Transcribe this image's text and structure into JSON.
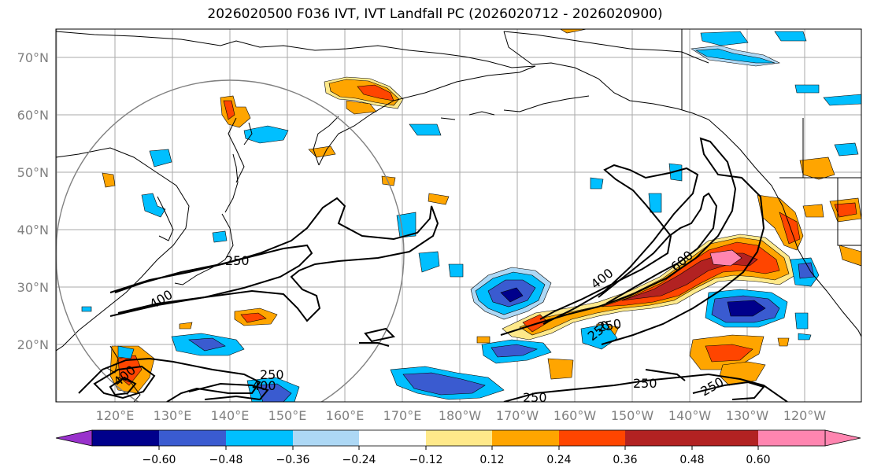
{
  "title": "2026020500 F036 IVT, IVT Landfall PC (2026020712 - 2026020900)",
  "map": {
    "lat_ticks": [
      "70°N",
      "60°N",
      "50°N",
      "40°N",
      "30°N",
      "20°N"
    ],
    "lon_ticks": [
      "120°E",
      "130°E",
      "140°E",
      "150°E",
      "160°E",
      "170°E",
      "180°W",
      "170°W",
      "160°W",
      "150°W",
      "140°W",
      "130°W",
      "120°W"
    ],
    "contour_labels": [
      "250",
      "400",
      "400",
      "400",
      "600",
      "250",
      "250",
      "400",
      "250",
      "250",
      "250",
      "250"
    ]
  },
  "colorbar": {
    "colors": [
      "#9932CC",
      "#00008B",
      "#3A5BD0",
      "#00BFFF",
      "#ADD8F5",
      "#FFFFFF",
      "#FFE98A",
      "#FFA500",
      "#FF4500",
      "#B22222",
      "#FF85B0"
    ],
    "labels": [
      "−0.60",
      "−0.48",
      "−0.36",
      "−0.24",
      "−0.12",
      "0.12",
      "0.24",
      "0.36",
      "0.48",
      "0.60"
    ]
  }
}
